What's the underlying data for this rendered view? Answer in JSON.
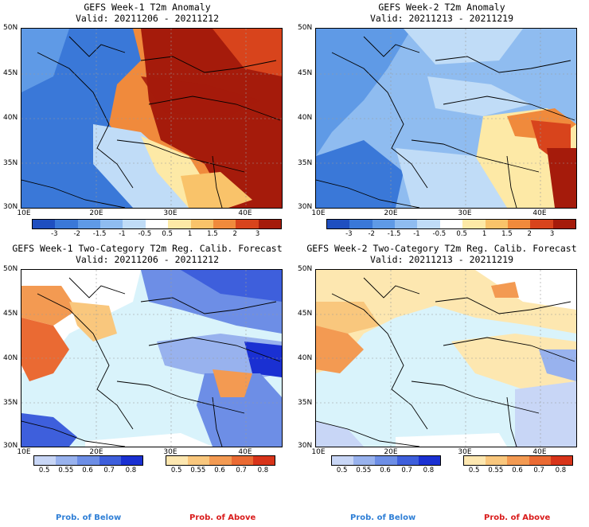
{
  "panels": [
    {
      "title": "GEFS Week-1 T2m Anomaly",
      "valid": "Valid: 20211206 - 20211212"
    },
    {
      "title": "GEFS Week-2 T2m Anomaly",
      "valid": "Valid: 20211213 - 20211219"
    },
    {
      "title": "GEFS Week-1 Two-Category T2m Reg. Calib. Forecast",
      "valid": "Valid: 20211206 - 20211212"
    },
    {
      "title": "GEFS Week-2 Two-Category T2m Reg. Calib. Forecast",
      "valid": "Valid: 20211213 - 20211219"
    }
  ],
  "lat_labels": [
    "50N",
    "45N",
    "40N",
    "35N",
    "30N"
  ],
  "lon_labels": [
    "10E",
    "20E",
    "30E",
    "40E"
  ],
  "anomaly_colorbar": {
    "ticks": [
      "-3",
      "-2",
      "-1.5",
      "-1",
      "-0.5",
      "0.5",
      "1",
      "1.5",
      "2",
      "3"
    ],
    "colors": [
      "#1f4fc0",
      "#3a78d8",
      "#5f9ae6",
      "#8fbcf0",
      "#c0dcf7",
      "#ffffff",
      "#fde9a6",
      "#f9c36a",
      "#f08a3c",
      "#d8441c",
      "#a51b0b"
    ]
  },
  "prob_colorbar": {
    "below_ticks": [
      "0.5",
      "0.55",
      "0.6",
      "0.7",
      "0.8"
    ],
    "above_ticks": [
      "0.5",
      "0.55",
      "0.6",
      "0.7",
      "0.8"
    ],
    "below_colors": [
      "#c8d6f6",
      "#98b2ee",
      "#6d8ee6",
      "#3e5fdc",
      "#1a30d2"
    ],
    "above_colors": [
      "#fde7b0",
      "#f9c77d",
      "#f39a52",
      "#ea6a33",
      "#d8341a"
    ]
  },
  "legend": {
    "below_label": "Prob. of Below",
    "above_label": "Prob. of Above",
    "below_color": "#2f7fd6",
    "above_color": "#d91c1c"
  },
  "map_colors": {
    "sea_light": "#d9f3fb",
    "land_neutral": "#ffffff"
  }
}
